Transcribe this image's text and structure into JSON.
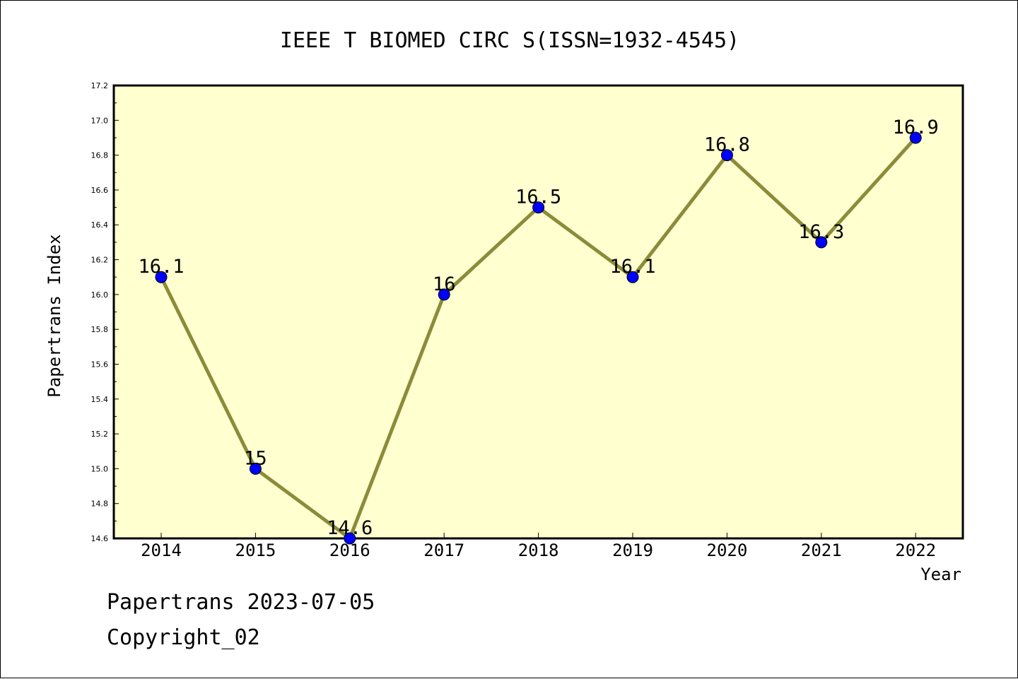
{
  "footer": {
    "line1": "Papertrans 2023-07-05",
    "line2": "Copyright_02"
  },
  "colors": {
    "plot_background": "#ffffd0",
    "line": "#8b8b3a",
    "marker": "#0000ff"
  },
  "chart_data": {
    "type": "line",
    "title": "IEEE T BIOMED CIRC S(ISSN=1932-4545)",
    "xlabel": "Year",
    "ylabel": "Papertrans Index",
    "categories": [
      "2014",
      "2015",
      "2016",
      "2017",
      "2018",
      "2019",
      "2020",
      "2021",
      "2022"
    ],
    "series": [
      {
        "values": [
          16.1,
          15.0,
          14.6,
          16.0,
          16.5,
          16.1,
          16.8,
          16.3,
          16.9
        ],
        "labels": [
          "16.1",
          "15",
          "14.6",
          "16",
          "16.5",
          "16.1",
          "16.8",
          "16.3",
          "16.9"
        ]
      }
    ],
    "ylim": [
      14.6,
      17.2
    ],
    "yticks": [
      "14.6",
      "14.8",
      "15.0",
      "15.2",
      "15.4",
      "15.6",
      "15.8",
      "16.0",
      "16.2",
      "16.4",
      "16.6",
      "16.8",
      "17.0",
      "17.2"
    ],
    "grid": false,
    "legend": "none"
  }
}
